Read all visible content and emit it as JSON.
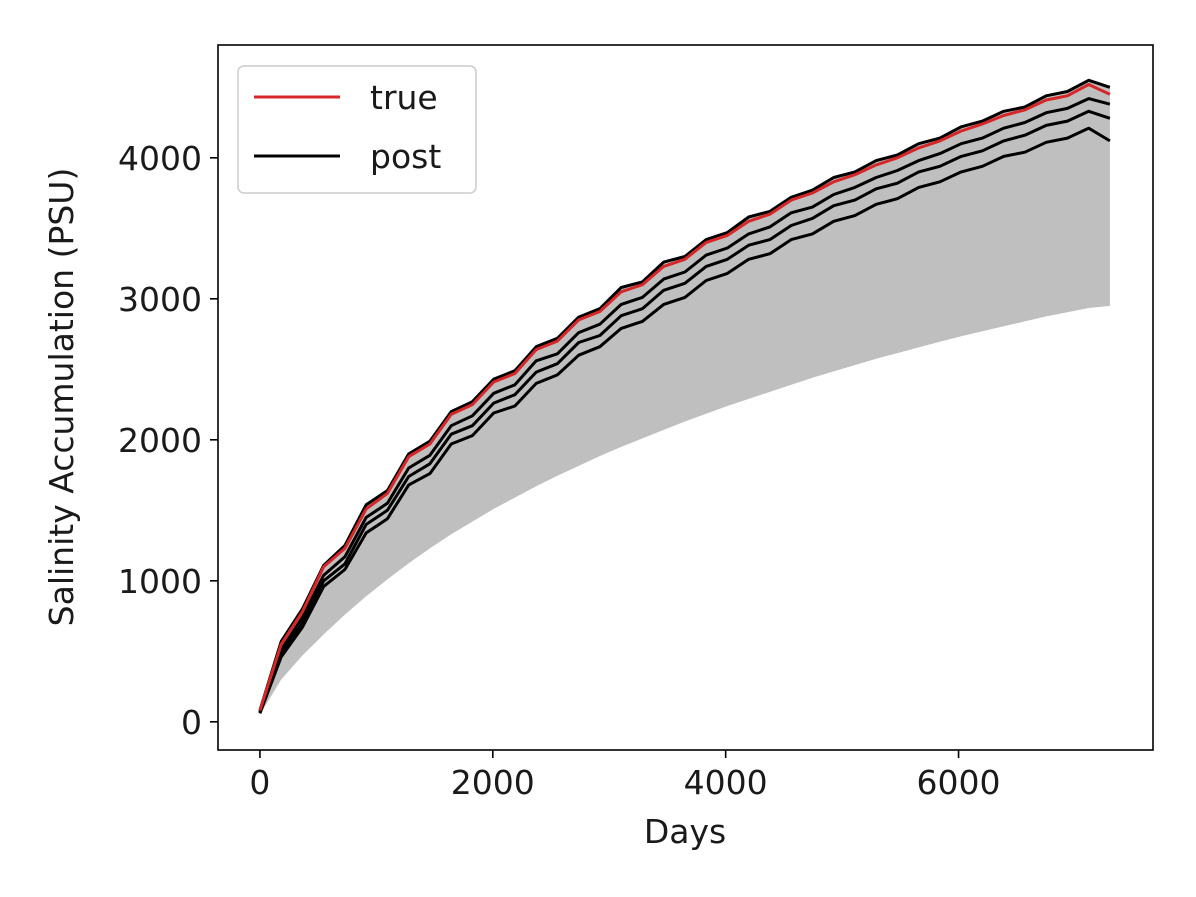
{
  "chart_data": {
    "type": "line",
    "xlabel": "Days",
    "ylabel": "Salinity Accumulation (PSU)",
    "xlim": [
      -360,
      7670
    ],
    "ylim": [
      -200,
      4800
    ],
    "xticks": [
      0,
      2000,
      4000,
      6000
    ],
    "xtick_labels": [
      "0",
      "2000",
      "4000",
      "6000"
    ],
    "yticks": [
      0,
      1000,
      2000,
      3000,
      4000
    ],
    "ytick_labels": [
      "0",
      "1000",
      "2000",
      "3000",
      "4000"
    ],
    "grid": false,
    "legend": {
      "position": "top-left",
      "entries": [
        {
          "label": "true",
          "color": "#d62728"
        },
        {
          "label": "post",
          "color": "#000000"
        }
      ]
    },
    "x": [
      0,
      183,
      365,
      548,
      730,
      913,
      1095,
      1278,
      1460,
      1643,
      1825,
      2008,
      2190,
      2373,
      2555,
      2738,
      2920,
      3103,
      3285,
      3468,
      3650,
      3833,
      4015,
      4198,
      4380,
      4563,
      4745,
      4928,
      5110,
      5293,
      5475,
      5658,
      5840,
      6023,
      6205,
      6388,
      6570,
      6753,
      6935,
      7118,
      7300
    ],
    "band": {
      "color": "#bfbfbf",
      "lower": [
        50,
        300,
        470,
        620,
        760,
        890,
        1010,
        1125,
        1230,
        1330,
        1420,
        1510,
        1590,
        1670,
        1745,
        1815,
        1885,
        1950,
        2010,
        2070,
        2130,
        2185,
        2240,
        2290,
        2340,
        2390,
        2440,
        2485,
        2530,
        2575,
        2615,
        2655,
        2695,
        2735,
        2770,
        2805,
        2840,
        2875,
        2905,
        2935,
        2950
      ],
      "upper": [
        95,
        570,
        810,
        1120,
        1260,
        1540,
        1650,
        1910,
        2000,
        2210,
        2280,
        2440,
        2500,
        2670,
        2730,
        2880,
        2940,
        3080,
        3130,
        3260,
        3310,
        3430,
        3480,
        3580,
        3630,
        3730,
        3780,
        3860,
        3910,
        3980,
        4030,
        4100,
        4150,
        4220,
        4270,
        4330,
        4370,
        4440,
        4470,
        4550,
        4500
      ]
    },
    "series": [
      {
        "name": "true",
        "color": "#d62728",
        "values": [
          80,
          550,
          780,
          1100,
          1230,
          1510,
          1620,
          1880,
          1970,
          2180,
          2250,
          2410,
          2470,
          2640,
          2700,
          2850,
          2910,
          3050,
          3100,
          3230,
          3280,
          3400,
          3450,
          3550,
          3600,
          3700,
          3750,
          3830,
          3880,
          3950,
          4000,
          4070,
          4120,
          4190,
          4240,
          4300,
          4340,
          4410,
          4440,
          4520,
          4450
        ]
      },
      {
        "values": [
          80,
          570,
          800,
          1110,
          1250,
          1540,
          1640,
          1900,
          1990,
          2200,
          2270,
          2430,
          2490,
          2660,
          2720,
          2870,
          2930,
          3080,
          3120,
          3260,
          3300,
          3420,
          3470,
          3580,
          3620,
          3720,
          3770,
          3860,
          3900,
          3980,
          4020,
          4100,
          4140,
          4220,
          4260,
          4330,
          4360,
          4440,
          4470,
          4550,
          4500
        ]
      },
      {
        "values": [
          70,
          510,
          740,
          1040,
          1170,
          1450,
          1550,
          1800,
          1890,
          2100,
          2170,
          2330,
          2390,
          2560,
          2610,
          2760,
          2820,
          2960,
          3010,
          3140,
          3190,
          3310,
          3360,
          3460,
          3510,
          3610,
          3650,
          3740,
          3790,
          3860,
          3910,
          3980,
          4030,
          4100,
          4140,
          4210,
          4250,
          4320,
          4350,
          4420,
          4380
        ]
      },
      {
        "values": [
          65,
          480,
          700,
          1000,
          1120,
          1400,
          1500,
          1740,
          1830,
          2040,
          2100,
          2260,
          2320,
          2480,
          2540,
          2690,
          2740,
          2880,
          2930,
          3060,
          3110,
          3230,
          3280,
          3380,
          3420,
          3520,
          3570,
          3660,
          3700,
          3780,
          3820,
          3900,
          3940,
          4010,
          4050,
          4120,
          4160,
          4230,
          4260,
          4330,
          4280
        ]
      },
      {
        "values": [
          60,
          460,
          670,
          960,
          1080,
          1340,
          1440,
          1680,
          1760,
          1970,
          2030,
          2190,
          2240,
          2400,
          2460,
          2600,
          2660,
          2790,
          2840,
          2960,
          3010,
          3130,
          3180,
          3280,
          3320,
          3420,
          3460,
          3550,
          3590,
          3670,
          3710,
          3790,
          3830,
          3900,
          3940,
          4010,
          4040,
          4110,
          4140,
          4210,
          4120
        ]
      }
    ]
  }
}
